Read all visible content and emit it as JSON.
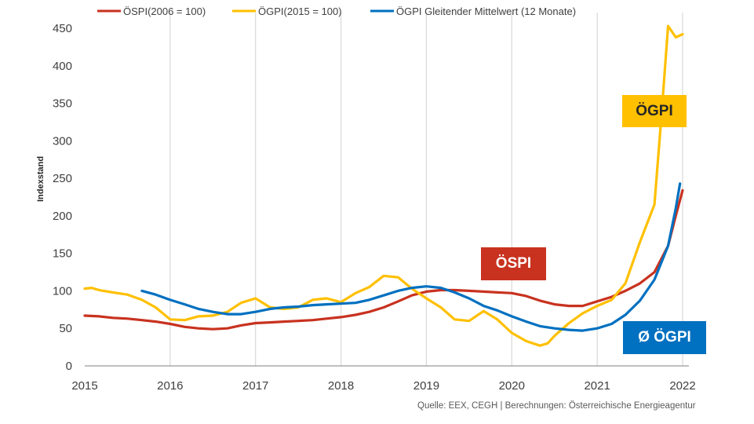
{
  "colors": {
    "oespi": "#C8321F",
    "oegpi": "#FFC000",
    "oegpi_ma": "#0070C0",
    "grid": "#D9D9D9",
    "axis": "#808080",
    "text": "#404040"
  },
  "labels": {
    "oegpi": "ÖGPI",
    "oespi": "ÖSPI",
    "ma": "Ø ÖGPI"
  },
  "source": "Quelle: EEX, CEGH | Berechnungen: Österreichische Energieagentur",
  "chart_data": {
    "type": "line",
    "title": "",
    "ylabel": "Indexstand",
    "xlabel": "",
    "xlim": [
      2015,
      2022
    ],
    "ylim": [
      0,
      450
    ],
    "x_ticks": [
      "2015",
      "2016",
      "2017",
      "2018",
      "2019",
      "2020",
      "2021",
      "2022"
    ],
    "y_ticks": [
      "0",
      "50",
      "100",
      "150",
      "200",
      "250",
      "300",
      "350",
      "400",
      "450"
    ],
    "grid": "vertical",
    "legend_position": "top",
    "series": [
      {
        "name": "ÖSPI(2006 = 100)",
        "color": "#C8321F",
        "x": [
          2015.0,
          2015.17,
          2015.33,
          2015.5,
          2015.67,
          2015.83,
          2016.0,
          2016.17,
          2016.33,
          2016.5,
          2016.67,
          2016.83,
          2017.0,
          2017.17,
          2017.33,
          2017.5,
          2017.67,
          2017.83,
          2018.0,
          2018.17,
          2018.33,
          2018.5,
          2018.67,
          2018.83,
          2019.0,
          2019.17,
          2019.33,
          2019.5,
          2019.67,
          2019.83,
          2020.0,
          2020.17,
          2020.33,
          2020.5,
          2020.67,
          2020.83,
          2021.0,
          2021.17,
          2021.33,
          2021.5,
          2021.67,
          2021.83,
          2021.92,
          2022.0
        ],
        "y": [
          67,
          66,
          64,
          63,
          61,
          59,
          56,
          52,
          50,
          49,
          50,
          54,
          57,
          58,
          59,
          60,
          61,
          63,
          65,
          68,
          72,
          78,
          86,
          94,
          99,
          101,
          101,
          100,
          99,
          98,
          97,
          93,
          87,
          82,
          80,
          80,
          86,
          92,
          100,
          110,
          125,
          160,
          200,
          234
        ]
      },
      {
        "name": "ÖGPI(2015 = 100)",
        "color": "#FFC000",
        "x": [
          2015.0,
          2015.08,
          2015.17,
          2015.33,
          2015.5,
          2015.67,
          2015.83,
          2016.0,
          2016.17,
          2016.33,
          2016.5,
          2016.67,
          2016.83,
          2017.0,
          2017.17,
          2017.33,
          2017.5,
          2017.67,
          2017.83,
          2018.0,
          2018.17,
          2018.33,
          2018.5,
          2018.67,
          2018.83,
          2019.0,
          2019.17,
          2019.33,
          2019.5,
          2019.67,
          2019.83,
          2020.0,
          2020.17,
          2020.33,
          2020.42,
          2020.5,
          2020.67,
          2020.83,
          2021.0,
          2021.17,
          2021.33,
          2021.5,
          2021.67,
          2021.75,
          2021.83,
          2021.92,
          2022.0
        ],
        "y": [
          103,
          104,
          101,
          98,
          95,
          88,
          78,
          62,
          61,
          66,
          67,
          72,
          84,
          90,
          78,
          76,
          78,
          88,
          90,
          85,
          97,
          105,
          120,
          118,
          103,
          90,
          78,
          62,
          60,
          73,
          62,
          44,
          33,
          27,
          30,
          40,
          57,
          70,
          80,
          88,
          110,
          165,
          215,
          330,
          453,
          438,
          442
        ]
      },
      {
        "name": "ÖGPI Gleitender Mittelwert (12 Monate)",
        "color": "#0070C0",
        "x": [
          2015.67,
          2015.83,
          2016.0,
          2016.17,
          2016.33,
          2016.5,
          2016.67,
          2016.83,
          2017.0,
          2017.17,
          2017.33,
          2017.5,
          2017.67,
          2017.83,
          2018.0,
          2018.17,
          2018.33,
          2018.5,
          2018.67,
          2018.83,
          2019.0,
          2019.17,
          2019.33,
          2019.5,
          2019.67,
          2019.83,
          2020.0,
          2020.17,
          2020.33,
          2020.5,
          2020.67,
          2020.83,
          2021.0,
          2021.17,
          2021.33,
          2021.5,
          2021.67,
          2021.83,
          2021.92,
          2021.97
        ],
        "y": [
          100,
          95,
          88,
          82,
          76,
          72,
          69,
          69,
          72,
          76,
          78,
          79,
          81,
          82,
          83,
          84,
          88,
          94,
          100,
          104,
          106,
          104,
          98,
          90,
          80,
          74,
          66,
          59,
          53,
          50,
          48,
          47,
          50,
          56,
          68,
          87,
          115,
          160,
          210,
          243
        ]
      }
    ]
  }
}
